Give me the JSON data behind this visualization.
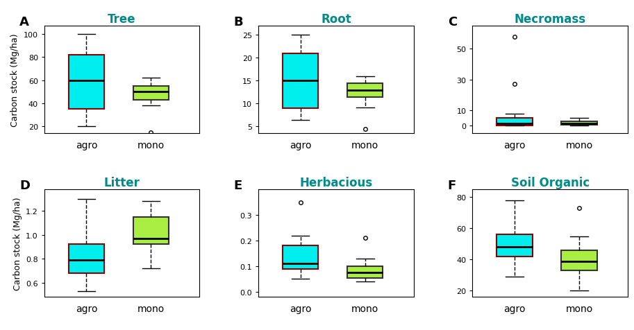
{
  "panels": [
    {
      "label": "A",
      "title": "Tree",
      "ylabel": "Carbon stock (Mg/ha)",
      "agro": {
        "whislo": 20,
        "q1": 35,
        "med": 60,
        "q3": 82,
        "whishi": 100,
        "fliers": []
      },
      "mono": {
        "whislo": 38,
        "q1": 43,
        "med": 50,
        "q3": 55,
        "whishi": 62,
        "fliers": [
          15
        ]
      },
      "ylim": [
        14,
        107
      ],
      "yticks": [
        20,
        40,
        60,
        80,
        100
      ]
    },
    {
      "label": "B",
      "title": "Root",
      "ylabel": "",
      "agro": {
        "whislo": 6.5,
        "q1": 9,
        "med": 15,
        "q3": 21,
        "whishi": 25,
        "fliers": []
      },
      "mono": {
        "whislo": 9.2,
        "q1": 11.5,
        "med": 13,
        "q3": 14.5,
        "whishi": 16,
        "fliers": [
          4.5
        ]
      },
      "ylim": [
        3.5,
        27
      ],
      "yticks": [
        5,
        10,
        15,
        20,
        25
      ]
    },
    {
      "label": "C",
      "title": "Necromass",
      "ylabel": "",
      "agro": {
        "whislo": 0,
        "q1": 0,
        "med": 1.5,
        "q3": 5,
        "whishi": 8,
        "fliers": [
          27,
          58
        ]
      },
      "mono": {
        "whislo": 0,
        "q1": 0.5,
        "med": 1.5,
        "q3": 3,
        "whishi": 5,
        "fliers": []
      },
      "ylim": [
        -5,
        65
      ],
      "yticks": [
        0,
        10,
        30,
        50
      ]
    },
    {
      "label": "D",
      "title": "Litter",
      "ylabel": "Carbon stock (Mg/ha)",
      "agro": {
        "whislo": 0.53,
        "q1": 0.68,
        "med": 0.79,
        "q3": 0.92,
        "whishi": 1.3,
        "fliers": []
      },
      "mono": {
        "whislo": 0.72,
        "q1": 0.92,
        "med": 0.97,
        "q3": 1.15,
        "whishi": 1.28,
        "fliers": []
      },
      "ylim": [
        0.48,
        1.38
      ],
      "yticks": [
        0.6,
        0.8,
        1.0,
        1.2
      ]
    },
    {
      "label": "E",
      "title": "Herbacious",
      "ylabel": "",
      "agro": {
        "whislo": 0.05,
        "q1": 0.09,
        "med": 0.11,
        "q3": 0.18,
        "whishi": 0.22,
        "fliers": [
          0.35
        ]
      },
      "mono": {
        "whislo": 0.04,
        "q1": 0.055,
        "med": 0.075,
        "q3": 0.1,
        "whishi": 0.13,
        "fliers": [
          0.21
        ]
      },
      "ylim": [
        -0.02,
        0.4
      ],
      "yticks": [
        0.0,
        0.1,
        0.2,
        0.3
      ]
    },
    {
      "label": "F",
      "title": "Soil Organic",
      "ylabel": "",
      "agro": {
        "whislo": 29,
        "q1": 42,
        "med": 48,
        "q3": 56,
        "whishi": 78,
        "fliers": []
      },
      "mono": {
        "whislo": 20,
        "q1": 33,
        "med": 39,
        "q3": 46,
        "whishi": 55,
        "fliers": [
          73
        ]
      },
      "ylim": [
        16,
        85
      ],
      "yticks": [
        20,
        40,
        60,
        80
      ]
    }
  ],
  "agro_color": "#00EEEE",
  "mono_color": "#AAEE44",
  "agro_edge": "#8B0000",
  "mono_edge": "#333333",
  "median_color": "#000000",
  "whisker_color": "#000000",
  "flier_color": "#000000",
  "title_color": "#008B8B",
  "label_color": "#000000",
  "bg_color": "#FFFFFF",
  "fontsize_title": 12,
  "fontsize_ylabel": 9,
  "fontsize_panel": 13,
  "fontsize_tick": 8,
  "fontsize_xticklabel": 10
}
